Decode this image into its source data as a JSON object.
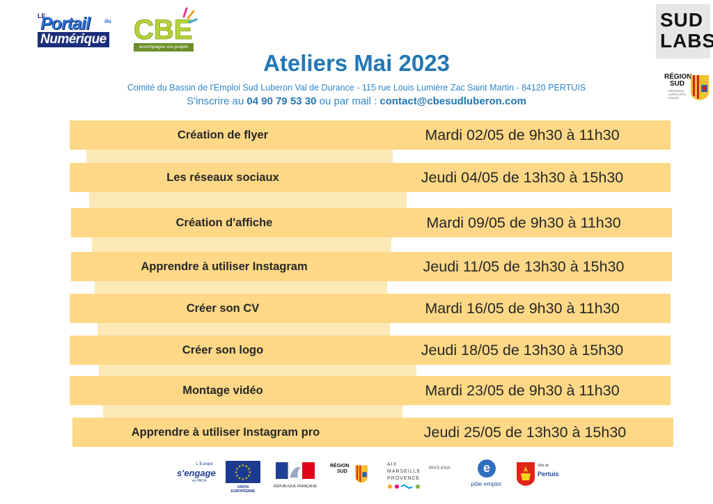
{
  "header": {
    "logo_portail": {
      "le": "LE",
      "line1": "Portail",
      "du": "du",
      "line2": "Numérique"
    },
    "logo_cbe": {
      "letters": "CBE",
      "tagline": "accompagne vos projets"
    },
    "logo_sudlabs": {
      "line1": "SUD",
      "line2": "LABS"
    },
    "logo_region": {
      "line1": "RÉGION",
      "line2": "SUD",
      "line3": "PROVENCE ALPES CÔTE D'AZUR"
    }
  },
  "title": "Ateliers Mai 2023",
  "subtitle": "Comité du Bassin de l'Emploi Sud Luberon Val de Durance - 115 rue Louis Lumière Zac Saint Martin - 84120 PERTUIS",
  "contact": {
    "prefix": "S'inscrire au ",
    "phone": "04 90 79 53 30",
    "middle": " ou par mail : ",
    "email": "contact@cbesudluberon.com"
  },
  "schedule": [
    {
      "workshop": "Création de flyer",
      "date": "Mardi 02/05 de 9h30 à 11h30"
    },
    {
      "workshop": "Les réseaux sociaux",
      "date": "Jeudi 04/05 de 13h30 à 15h30"
    },
    {
      "workshop": "Création d'affiche",
      "date": "Mardi 09/05 de 9h30 à 11h30"
    },
    {
      "workshop": "Apprendre à utiliser Instagram",
      "date": "Jeudi 11/05 de 13h30 à 15h30"
    },
    {
      "workshop": "Créer son CV",
      "date": "Mardi 16/05 de 9h30 à 11h30"
    },
    {
      "workshop": "Créer son logo",
      "date": "Jeudi 18/05 de 13h30 à 15h30"
    },
    {
      "workshop": "Montage vidéo",
      "date": "Mardi 23/05 de 9h30 à 11h30"
    },
    {
      "workshop": "Apprendre à utiliser Instagram pro",
      "date": "Jeudi 25/05 de 13h30 à 15h30"
    }
  ],
  "footer": {
    "europe": {
      "top": "L'Europe",
      "main": "s'engage",
      "sub": "en PACA"
    },
    "ue_label": "UNION EUROPÉENNE",
    "rf_label": "RÉPUBLIQUE FRANÇAISE",
    "region": {
      "line1": "RÉGION",
      "line2": "SUD"
    },
    "amp": {
      "line1": "AIX",
      "line2": "MARSEILLE",
      "line3": "PROVENCE"
    },
    "pays": "PAYS d'AIX",
    "pole_emploi": "pôle emploi",
    "pertuis": {
      "ville": "Ville de",
      "name": "Pertuis"
    }
  },
  "colors": {
    "title": "#2277b5",
    "row": "#fed886",
    "strip": "#fde9b6",
    "text": "#262626"
  }
}
